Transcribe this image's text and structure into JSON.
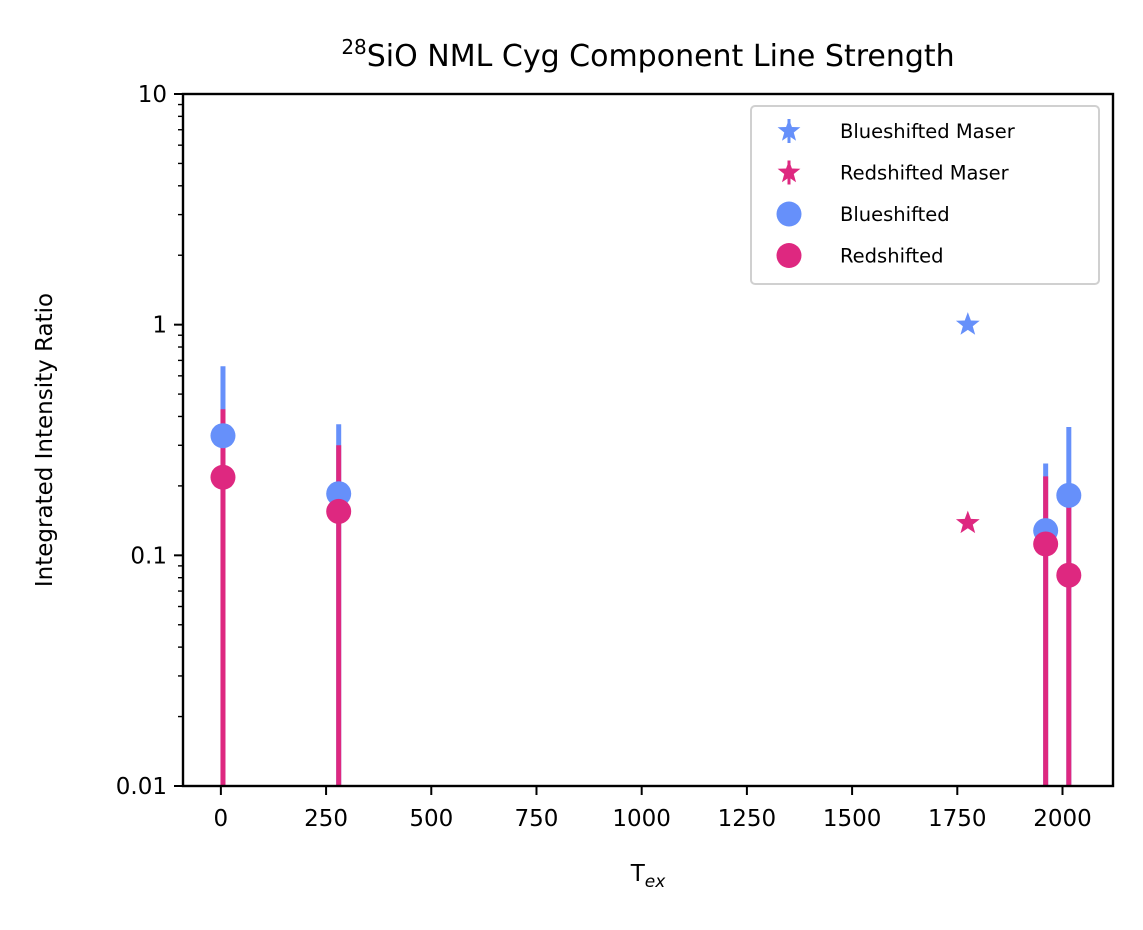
{
  "chart_data": {
    "type": "scatter",
    "title": {
      "superscript": "28",
      "main": "SiO NML Cyg Component Line Strength"
    },
    "xlabel": {
      "main": "T",
      "subscript": "ex"
    },
    "ylabel": "Integrated Intensity Ratio",
    "xlim": [
      -90,
      2120
    ],
    "ylim": [
      0.01,
      10
    ],
    "yscale": "log",
    "grid": false,
    "xticks": [
      0,
      250,
      500,
      750,
      1000,
      1250,
      1500,
      1750,
      2000
    ],
    "xtick_labels": [
      "0",
      "250",
      "500",
      "750",
      "1000",
      "1250",
      "1500",
      "1750",
      "2000"
    ],
    "yticks": [
      0.01,
      0.1,
      1,
      10
    ],
    "ytick_labels": [
      "0.01",
      "0.1",
      "1",
      "10"
    ],
    "legend_position": "top-right",
    "colors": {
      "blue": "#6690fa",
      "red": "#de2880"
    },
    "series": [
      {
        "name": "Blueshifted Maser",
        "marker": "star",
        "color": "#6690fa",
        "points": [
          {
            "x": 1775,
            "y": 1.0
          }
        ]
      },
      {
        "name": "Redshifted Maser",
        "marker": "star",
        "color": "#de2880",
        "points": [
          {
            "x": 1775,
            "y": 0.138
          }
        ]
      },
      {
        "name": "Blueshifted",
        "marker": "circle",
        "color": "#6690fa",
        "points": [
          {
            "x": 5,
            "y": 0.33,
            "err_low": 0.01,
            "err_high": 0.66
          },
          {
            "x": 280,
            "y": 0.185,
            "err_low": 0.01,
            "err_high": 0.37
          },
          {
            "x": 1960,
            "y": 0.128,
            "err_low": 0.01,
            "err_high": 0.25
          },
          {
            "x": 2015,
            "y": 0.182,
            "err_low": 0.01,
            "err_high": 0.36
          }
        ]
      },
      {
        "name": "Redshifted",
        "marker": "circle",
        "color": "#de2880",
        "points": [
          {
            "x": 5,
            "y": 0.218,
            "err_low": 0.01,
            "err_high": 0.43
          },
          {
            "x": 280,
            "y": 0.155,
            "err_low": 0.01,
            "err_high": 0.3
          },
          {
            "x": 1960,
            "y": 0.112,
            "err_low": 0.01,
            "err_high": 0.22
          },
          {
            "x": 2015,
            "y": 0.082,
            "err_low": 0.01,
            "err_high": 0.165
          }
        ]
      }
    ]
  }
}
